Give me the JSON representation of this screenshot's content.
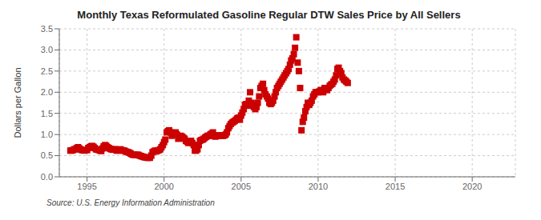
{
  "chart_data": {
    "type": "scatter",
    "title": "Monthly Texas Reformulated Gasoline Regular DTW Sales Price by All Sellers",
    "ylabel": "Dollars per Gallon",
    "annotations": [
      "Source: U.S. Energy Information Administration"
    ],
    "color": "#cc0000",
    "marker": "square",
    "grid": true,
    "xlim": [
      1993.2,
      2022.8
    ],
    "ylim": [
      0.0,
      3.5
    ],
    "xticks": [
      1995,
      2000,
      2005,
      2010,
      2015,
      2020
    ],
    "yticks": [
      {
        "value": 0,
        "label": "0.0"
      },
      0.5,
      {
        "value": 1,
        "label": "1.0"
      },
      1.5,
      {
        "value": 2,
        "label": "2.0"
      },
      2.5,
      {
        "value": 3,
        "label": "3.0"
      },
      3.5
    ],
    "x": [
      1993.92,
      1994.0,
      1994.08,
      1994.17,
      1994.25,
      1994.33,
      1994.42,
      1994.5,
      1994.58,
      1994.67,
      1994.75,
      1994.83,
      1995.0,
      1995.08,
      1995.17,
      1995.25,
      1995.33,
      1995.42,
      1995.5,
      1995.58,
      1995.67,
      1995.75,
      1995.83,
      1995.92,
      1996.0,
      1996.08,
      1996.17,
      1996.25,
      1996.33,
      1996.42,
      1996.5,
      1996.58,
      1996.67,
      1996.75,
      1996.83,
      1996.92,
      1997.0,
      1997.08,
      1997.17,
      1997.25,
      1997.33,
      1997.42,
      1997.5,
      1997.58,
      1997.67,
      1997.75,
      1997.83,
      1997.92,
      1998.0,
      1998.08,
      1998.17,
      1998.25,
      1998.33,
      1998.42,
      1998.5,
      1998.58,
      1998.67,
      1998.75,
      1998.83,
      1998.92,
      1999.0,
      1999.08,
      1999.17,
      1999.25,
      1999.33,
      1999.42,
      1999.5,
      1999.58,
      1999.67,
      1999.75,
      1999.83,
      1999.92,
      2000.0,
      2000.08,
      2000.17,
      2000.25,
      2000.33,
      2000.42,
      2000.5,
      2000.58,
      2000.67,
      2000.75,
      2000.83,
      2000.92,
      2001.0,
      2001.08,
      2001.17,
      2001.25,
      2001.33,
      2001.42,
      2001.5,
      2001.58,
      2001.67,
      2001.75,
      2001.83,
      2001.92,
      2002.0,
      2002.08,
      2002.17,
      2002.25,
      2002.33,
      2002.42,
      2002.5,
      2002.58,
      2002.67,
      2002.75,
      2002.83,
      2002.92,
      2003.0,
      2003.08,
      2003.17,
      2003.25,
      2003.33,
      2003.42,
      2003.5,
      2003.58,
      2003.67,
      2003.75,
      2003.83,
      2003.92,
      2004.0,
      2004.08,
      2004.17,
      2004.25,
      2004.33,
      2004.42,
      2004.5,
      2004.58,
      2004.67,
      2004.75,
      2004.83,
      2004.92,
      2005.0,
      2005.08,
      2005.17,
      2005.25,
      2005.33,
      2005.42,
      2005.5,
      2005.58,
      2005.67,
      2005.75,
      2005.83,
      2005.92,
      2006.0,
      2006.08,
      2006.17,
      2006.25,
      2006.33,
      2006.42,
      2006.5,
      2006.58,
      2006.67,
      2006.75,
      2006.83,
      2006.92,
      2007.0,
      2007.08,
      2007.17,
      2007.25,
      2007.33,
      2007.42,
      2007.5,
      2007.58,
      2007.67,
      2007.75,
      2007.83,
      2007.92,
      2008.0,
      2008.08,
      2008.17,
      2008.25,
      2008.33,
      2008.42,
      2008.5,
      2008.58,
      2008.67,
      2008.75,
      2008.83,
      2008.92,
      2009.0,
      2009.08,
      2009.17,
      2009.25,
      2009.33,
      2009.42,
      2009.5,
      2009.58,
      2009.67,
      2009.75,
      2009.83,
      2009.92,
      2010.0,
      2010.08,
      2010.17,
      2010.25,
      2010.33,
      2010.42,
      2010.5,
      2010.58,
      2010.67,
      2010.75,
      2010.83,
      2010.92,
      2011.0,
      2011.08,
      2011.17,
      2011.25,
      2011.33,
      2011.42,
      2011.5,
      2011.58,
      2011.67,
      2011.75,
      2011.83,
      2011.92
    ],
    "values": [
      0.62,
      0.62,
      0.63,
      0.65,
      0.65,
      0.68,
      0.7,
      0.67,
      0.65,
      0.63,
      0.63,
      0.62,
      0.63,
      0.68,
      0.7,
      0.72,
      0.73,
      0.71,
      0.68,
      0.65,
      0.64,
      0.64,
      0.62,
      0.61,
      0.67,
      0.72,
      0.75,
      0.73,
      0.7,
      0.68,
      0.66,
      0.65,
      0.64,
      0.65,
      0.65,
      0.62,
      0.62,
      0.63,
      0.65,
      0.63,
      0.62,
      0.62,
      0.6,
      0.59,
      0.58,
      0.57,
      0.55,
      0.53,
      0.52,
      0.52,
      0.52,
      0.52,
      0.52,
      0.5,
      0.49,
      0.48,
      0.47,
      0.46,
      0.46,
      0.45,
      0.45,
      0.45,
      0.5,
      0.58,
      0.6,
      0.62,
      0.6,
      0.62,
      0.63,
      0.65,
      0.7,
      0.75,
      0.82,
      0.88,
      1.05,
      1.08,
      1.1,
      1.05,
      0.97,
      1.0,
      1.02,
      1.05,
      1.0,
      0.9,
      0.95,
      0.97,
      0.95,
      0.92,
      0.9,
      0.85,
      0.83,
      0.8,
      0.82,
      0.85,
      0.8,
      0.75,
      0.62,
      0.62,
      0.65,
      0.75,
      0.85,
      0.87,
      0.88,
      0.9,
      0.93,
      0.95,
      0.97,
      0.97,
      1.0,
      1.02,
      1.05,
      0.97,
      0.95,
      0.97,
      0.98,
      0.98,
      0.97,
      0.97,
      0.97,
      0.98,
      1.0,
      1.05,
      1.15,
      1.2,
      1.25,
      1.28,
      1.3,
      1.32,
      1.35,
      1.38,
      1.4,
      1.35,
      1.45,
      1.52,
      1.6,
      1.7,
      1.72,
      1.68,
      1.8,
      2.0,
      1.75,
      1.7,
      1.65,
      1.6,
      1.65,
      1.75,
      1.9,
      2.1,
      2.15,
      2.2,
      2.05,
      1.95,
      1.9,
      1.85,
      1.75,
      1.72,
      1.75,
      1.8,
      1.9,
      2.0,
      2.1,
      2.15,
      2.2,
      2.25,
      2.3,
      2.35,
      2.4,
      2.45,
      2.5,
      2.55,
      2.65,
      2.75,
      2.8,
      2.9,
      3.05,
      3.3,
      2.7,
      2.5,
      2.1,
      1.1,
      1.3,
      1.4,
      1.55,
      1.65,
      1.75,
      1.7,
      1.75,
      1.8,
      1.9,
      1.95,
      2.0,
      2.0,
      2.0,
      2.02,
      2.05,
      2.05,
      2.0,
      2.1,
      2.08,
      2.05,
      2.1,
      2.15,
      2.18,
      2.2,
      2.25,
      2.3,
      2.4,
      2.55,
      2.58,
      2.5,
      2.45,
      2.35,
      2.3,
      2.28,
      2.25,
      2.22
    ]
  }
}
